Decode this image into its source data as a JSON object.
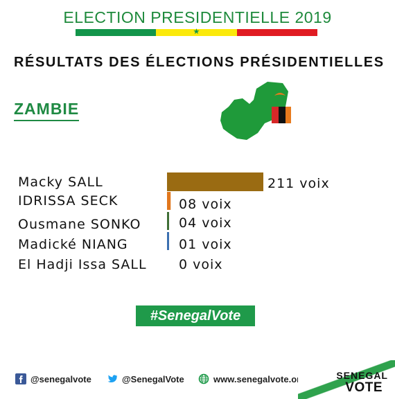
{
  "header": {
    "title": "ELECTION PRESIDENTIELLE 2019",
    "stripe_colors": [
      "#12954a",
      "#fbe90a",
      "#e01b22"
    ]
  },
  "heading": "RÉSULTATS DES ÉLECTIONS PRÉSIDENTIELLES",
  "country": "ZAMBIE",
  "chart_data": {
    "type": "bar",
    "orientation": "horizontal",
    "categories": [
      "Macky SALL",
      "IDRISSA SECK",
      "Ousmane SONKO",
      "Madické NIANG",
      "El Hadji Issa SALL"
    ],
    "values": [
      211,
      8,
      4,
      1,
      0
    ],
    "value_labels": [
      "211 voix",
      "08 voix",
      "04 voix",
      "01 voix",
      "0 voix"
    ],
    "colors": [
      "#9a6b12",
      "#e1771d",
      "#3f6e36",
      "#3b6fb0",
      "#888888"
    ],
    "title": "",
    "xlabel": "",
    "ylabel": "",
    "xlim": [
      0,
      211
    ]
  },
  "hashtag": "#SenegalVote",
  "footer": {
    "facebook": "@senegalvote",
    "twitter": "@SenegalVote",
    "website": "www.senegalvote.org",
    "brand_top": "SENEGAL",
    "brand_bottom": "VOTE"
  }
}
